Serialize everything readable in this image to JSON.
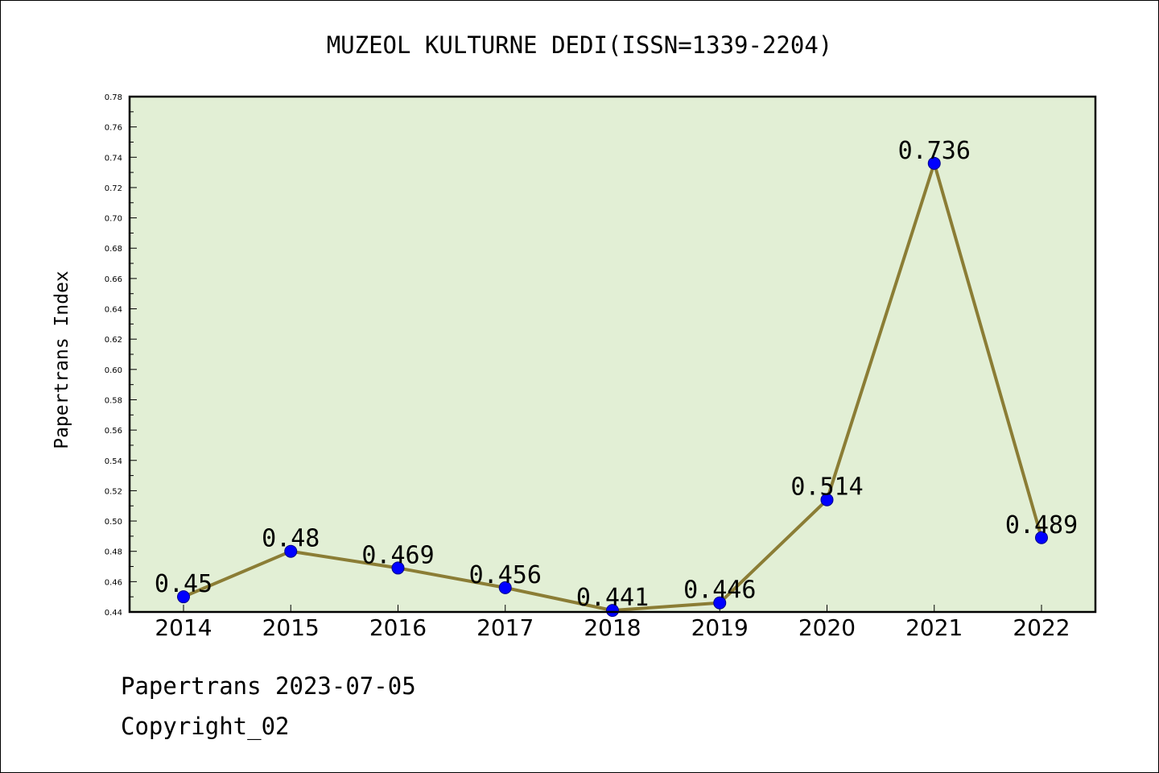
{
  "chart_data": {
    "type": "line",
    "title": "MUZEOL KULTURNE DEDI(ISSN=1339-2204)",
    "xlabel": "",
    "ylabel": "Papertrans Index",
    "categories": [
      "2014",
      "2015",
      "2016",
      "2017",
      "2018",
      "2019",
      "2020",
      "2021",
      "2022"
    ],
    "values": [
      0.45,
      0.48,
      0.469,
      0.456,
      0.441,
      0.446,
      0.514,
      0.736,
      0.489
    ],
    "data_labels": [
      "0.45",
      "0.48",
      "0.469",
      "0.456",
      "0.441",
      "0.446",
      "0.514",
      "0.736",
      "0.489"
    ],
    "ylim": [
      0.44,
      0.78
    ],
    "yticks": [
      "0.44",
      "0.46",
      "0.48",
      "0.50",
      "0.52",
      "0.54",
      "0.56",
      "0.58",
      "0.60",
      "0.62",
      "0.64",
      "0.66",
      "0.68",
      "0.70",
      "0.72",
      "0.74",
      "0.76",
      "0.78"
    ],
    "grid": false,
    "colors": {
      "plot_background": "#e2efd5",
      "line": "#8b7d35",
      "marker": "#0000ff"
    }
  },
  "footer": {
    "date_line": "Papertrans 2023-07-05",
    "copyright": "Copyright_02"
  }
}
